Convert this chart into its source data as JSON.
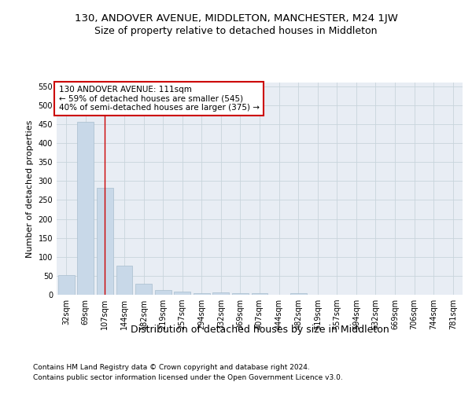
{
  "title": "130, ANDOVER AVENUE, MIDDLETON, MANCHESTER, M24 1JW",
  "subtitle": "Size of property relative to detached houses in Middleton",
  "xlabel": "Distribution of detached houses by size in Middleton",
  "ylabel": "Number of detached properties",
  "categories": [
    "32sqm",
    "69sqm",
    "107sqm",
    "144sqm",
    "182sqm",
    "219sqm",
    "257sqm",
    "294sqm",
    "332sqm",
    "369sqm",
    "407sqm",
    "444sqm",
    "482sqm",
    "519sqm",
    "557sqm",
    "594sqm",
    "632sqm",
    "669sqm",
    "706sqm",
    "744sqm",
    "781sqm"
  ],
  "values": [
    52,
    456,
    283,
    76,
    30,
    13,
    9,
    5,
    6,
    5,
    5,
    0,
    5,
    0,
    0,
    0,
    0,
    0,
    0,
    0,
    0
  ],
  "bar_color": "#c8d8e8",
  "bar_edge_color": "#a8bece",
  "vline_x": 2,
  "vline_color": "#cc0000",
  "annotation_text": "130 ANDOVER AVENUE: 111sqm\n← 59% of detached houses are smaller (545)\n40% of semi-detached houses are larger (375) →",
  "annotation_box_color": "#ffffff",
  "annotation_box_edgecolor": "#cc0000",
  "ylim": [
    0,
    560
  ],
  "yticks": [
    0,
    50,
    100,
    150,
    200,
    250,
    300,
    350,
    400,
    450,
    500,
    550
  ],
  "grid_color": "#c8d4dc",
  "background_color": "#e8edf4",
  "footer_line1": "Contains HM Land Registry data © Crown copyright and database right 2024.",
  "footer_line2": "Contains public sector information licensed under the Open Government Licence v3.0.",
  "title_fontsize": 9.5,
  "subtitle_fontsize": 9,
  "xlabel_fontsize": 9,
  "ylabel_fontsize": 8,
  "tick_fontsize": 7,
  "annotation_fontsize": 7.5,
  "footer_fontsize": 6.5
}
